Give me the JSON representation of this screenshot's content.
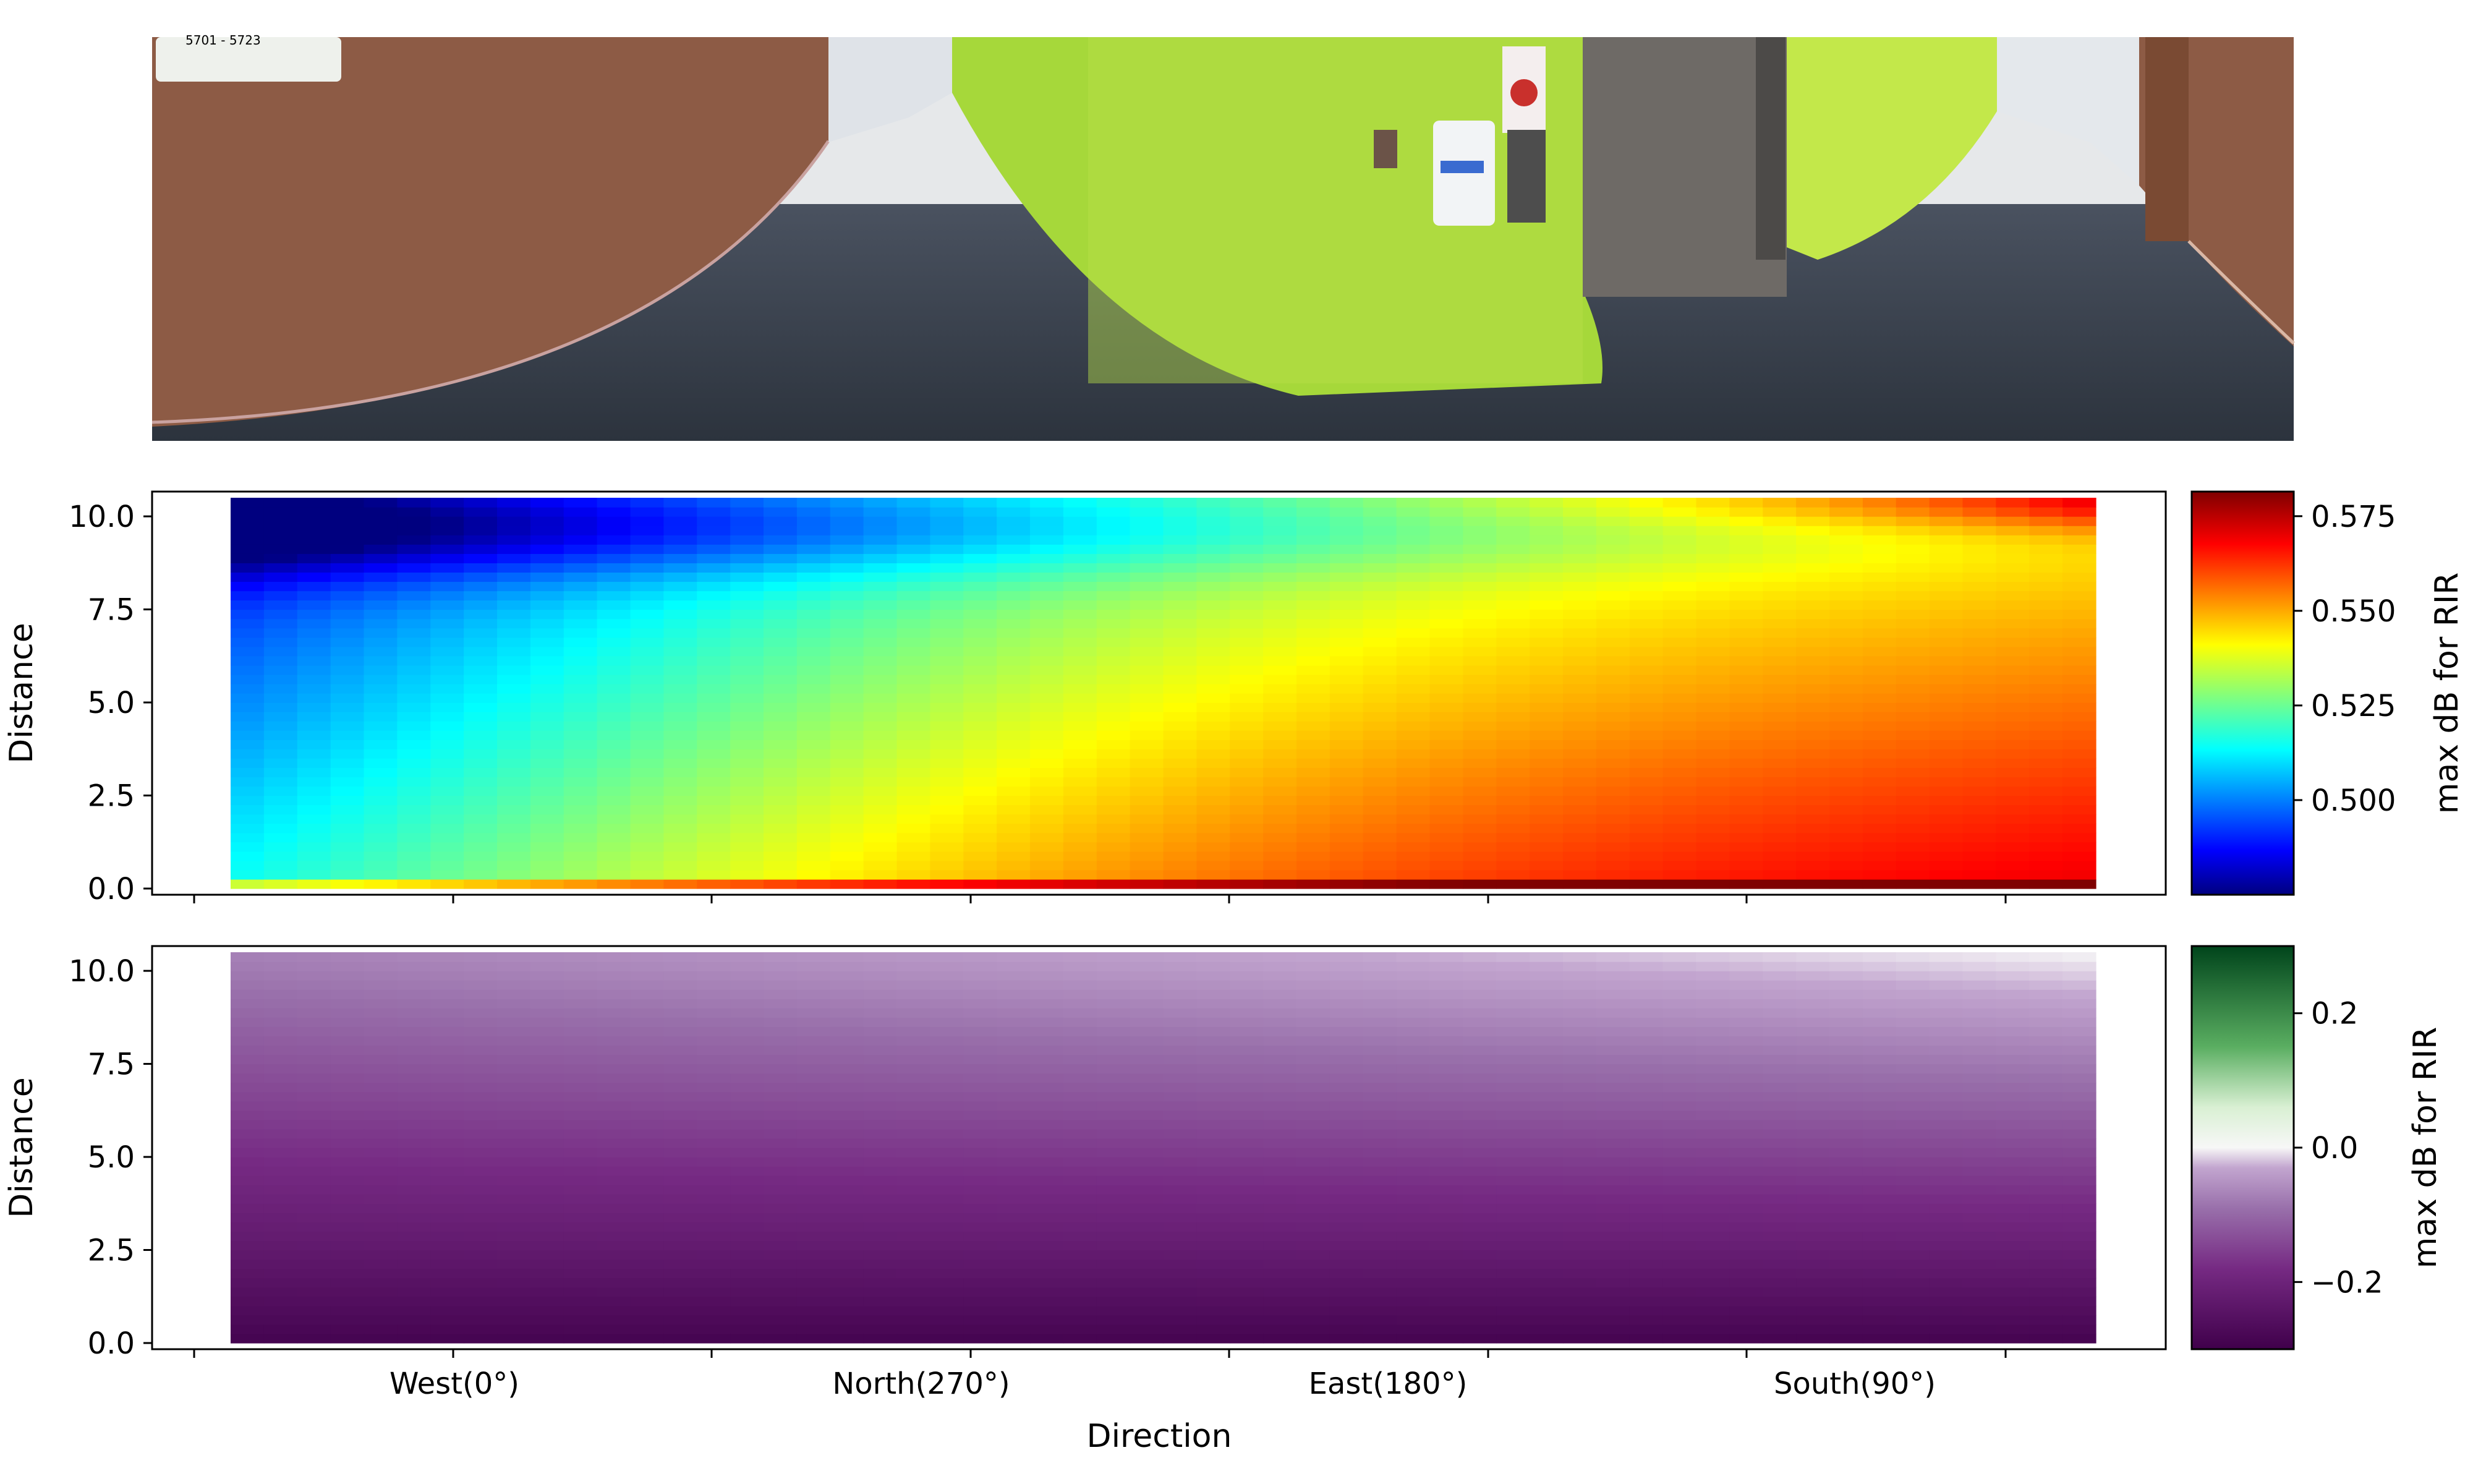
{
  "colors": {
    "panorama_left_wall": "#8d5b45",
    "panorama_green_wall": "#a6d83a",
    "panorama_floor": "#3a4350",
    "panorama_ceiling": "#e6e8ea"
  },
  "panorama": {
    "sign_text": "5701 - 5723"
  },
  "chart_data": [
    {
      "type": "heatmap",
      "title": "",
      "xlabel": "",
      "ylabel": "Distance",
      "y_ticks": [
        "0.0",
        "2.5",
        "5.0",
        "7.5",
        "10.0"
      ],
      "ylim": [
        0,
        10.5
      ],
      "x_categories": [
        "West(0°)",
        "North(270°)",
        "East(180°)",
        "South(90°)"
      ],
      "x_tick_labels_shown": false,
      "grid": false,
      "colormap": "jet",
      "colorbar": {
        "label": "max dB for RIR",
        "ticks": [
          "0.500",
          "0.525",
          "0.550",
          "0.575"
        ],
        "range": [
          0.475,
          0.5815
        ]
      },
      "value_summary": {
        "min": 0.477,
        "max": 0.581,
        "low_region": "West/North directions at distance 7.5–10.5",
        "high_region": "South(90°) side at distance 10.0–10.5 and near distance 0"
      }
    },
    {
      "type": "heatmap",
      "title": "",
      "xlabel": "Direction",
      "ylabel": "Distance",
      "y_ticks": [
        "0.0",
        "2.5",
        "5.0",
        "7.5",
        "10.0"
      ],
      "ylim": [
        0,
        10.5
      ],
      "x_categories": [
        "West(0°)",
        "North(270°)",
        "East(180°)",
        "South(90°)"
      ],
      "grid": false,
      "colormap": "PRGn",
      "colorbar": {
        "label": "max dB for RIR",
        "ticks": [
          "−0.2",
          "0.0",
          "0.2"
        ],
        "range": [
          -0.3,
          0.3
        ]
      },
      "value_summary": {
        "min": -0.29,
        "max": 0.01,
        "low_region": "distance 0 (darkest purple)",
        "high_region": "South(90°) side at distance 10.0–10.5 (near 0)"
      }
    }
  ]
}
